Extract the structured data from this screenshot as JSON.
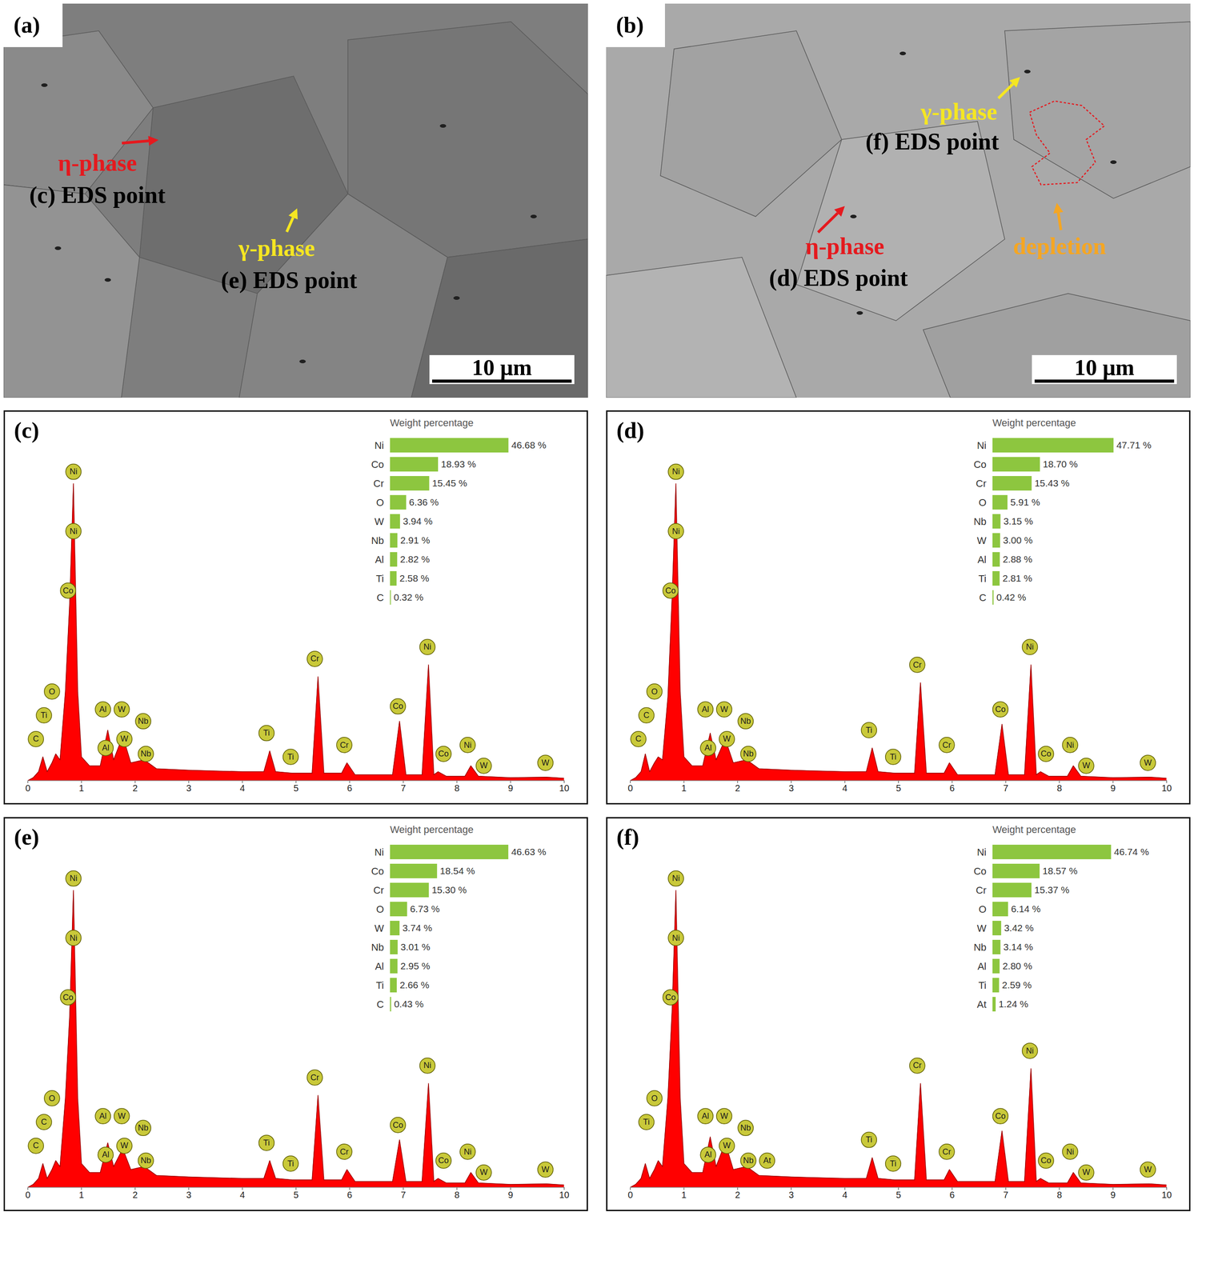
{
  "chart_data": [
    {
      "type": "image",
      "panel": "(a)",
      "scale_bar": "10 μm",
      "annotations": [
        {
          "text": "η-phase",
          "color": "#e5191e"
        },
        {
          "text": "(c) EDS point",
          "color": "#000000"
        },
        {
          "text": "γ-phase",
          "color": "#f5e622"
        },
        {
          "text": "(e) EDS point",
          "color": "#000000"
        }
      ]
    },
    {
      "type": "image",
      "panel": "(b)",
      "scale_bar": "10 μm",
      "annotations": [
        {
          "text": "γ-phase",
          "color": "#f5e622"
        },
        {
          "text": "(f) EDS point",
          "color": "#000000"
        },
        {
          "text": "η-phase",
          "color": "#e5191e"
        },
        {
          "text": "(d) EDS point",
          "color": "#000000"
        },
        {
          "text": "depletion",
          "color": "#f5a623"
        }
      ]
    },
    {
      "type": "area",
      "panel": "(c)",
      "color": "#ff0000",
      "tick_labels": "x",
      "xlim": [
        0,
        10
      ],
      "xticks": [
        0,
        1,
        2,
        3,
        4,
        5,
        6,
        7,
        8,
        9,
        10
      ],
      "ylim": [
        0,
        115
      ],
      "x": [
        0,
        0.1,
        0.2,
        0.28,
        0.36,
        0.45,
        0.52,
        0.6,
        0.7,
        0.78,
        0.85,
        0.93,
        1.0,
        1.15,
        1.35,
        1.49,
        1.6,
        1.77,
        1.92,
        2.17,
        2.4,
        3,
        4,
        4.4,
        4.51,
        4.62,
        4.93,
        5.3,
        5.41,
        5.52,
        5.85,
        5.95,
        6.1,
        6.8,
        6.93,
        7.05,
        7.35,
        7.47,
        7.57,
        7.65,
        7.8,
        8.15,
        8.26,
        8.4,
        9,
        9.67,
        10
      ],
      "values": [
        0,
        1,
        3,
        8,
        3,
        6,
        9,
        7,
        30,
        60,
        100,
        30,
        8,
        5,
        5,
        17,
        7,
        15,
        6,
        7,
        4,
        3.5,
        3,
        3,
        10,
        3,
        2.5,
        2.5,
        35,
        2.5,
        2.5,
        6,
        2,
        2,
        20,
        2,
        2,
        39,
        2,
        3,
        1.5,
        1.5,
        5,
        1.5,
        1,
        1.2,
        0.8
      ],
      "peak_labels": [
        {
          "label": "Ni",
          "x": 0.85,
          "y": 104
        },
        {
          "label": "Ni",
          "x": 0.85,
          "y": 84
        },
        {
          "label": "Co",
          "x": 0.75,
          "y": 64
        },
        {
          "label": "O",
          "x": 0.45,
          "y": 30
        },
        {
          "label": "Ti",
          "x": 0.3,
          "y": 22
        },
        {
          "label": "C",
          "x": 0.15,
          "y": 14
        },
        {
          "label": "Al",
          "x": 1.4,
          "y": 24
        },
        {
          "label": "Al",
          "x": 1.45,
          "y": 11
        },
        {
          "label": "W",
          "x": 1.75,
          "y": 24
        },
        {
          "label": "W",
          "x": 1.8,
          "y": 14
        },
        {
          "label": "Nb",
          "x": 2.15,
          "y": 20
        },
        {
          "label": "Nb",
          "x": 2.2,
          "y": 9
        },
        {
          "label": "Ti",
          "x": 4.45,
          "y": 16
        },
        {
          "label": "Ti",
          "x": 4.9,
          "y": 8
        },
        {
          "label": "Cr",
          "x": 5.35,
          "y": 41
        },
        {
          "label": "Cr",
          "x": 5.9,
          "y": 12
        },
        {
          "label": "Co",
          "x": 6.9,
          "y": 25
        },
        {
          "label": "Ni",
          "x": 7.45,
          "y": 45
        },
        {
          "label": "Co",
          "x": 7.75,
          "y": 9
        },
        {
          "label": "Ni",
          "x": 8.2,
          "y": 12
        },
        {
          "label": "W",
          "x": 8.5,
          "y": 5
        },
        {
          "label": "W",
          "x": 9.65,
          "y": 6
        }
      ],
      "inset": {
        "type": "bar",
        "orientation": "horizontal",
        "title": "Weight percentage",
        "color": "#8dc63f",
        "data_labels": true,
        "tick_labels": "y",
        "xlim": [
          0,
          50
        ],
        "categories": [
          "Ni",
          "Co",
          "Cr",
          "O",
          "W",
          "Nb",
          "Al",
          "Ti",
          "C"
        ],
        "values": [
          46.68,
          18.93,
          15.45,
          6.36,
          3.94,
          2.91,
          2.82,
          2.58,
          0.32
        ],
        "value_labels": [
          "46.68 %",
          "18.93 %",
          "15.45 %",
          "6.36 %",
          "3.94 %",
          "2.91 %",
          "2.82 %",
          "2.58 %",
          "0.32 %"
        ]
      }
    },
    {
      "type": "area",
      "panel": "(d)",
      "color": "#ff0000",
      "tick_labels": "x",
      "xlim": [
        0,
        10
      ],
      "xticks": [
        0,
        1,
        2,
        3,
        4,
        5,
        6,
        7,
        8,
        9,
        10
      ],
      "ylim": [
        0,
        115
      ],
      "x": [
        0,
        0.1,
        0.2,
        0.28,
        0.36,
        0.45,
        0.52,
        0.6,
        0.7,
        0.78,
        0.85,
        0.93,
        1.0,
        1.15,
        1.35,
        1.49,
        1.6,
        1.77,
        1.92,
        2.17,
        2.4,
        3,
        4,
        4.4,
        4.51,
        4.62,
        4.93,
        5.3,
        5.41,
        5.52,
        5.85,
        5.95,
        6.1,
        6.8,
        6.93,
        7.05,
        7.35,
        7.47,
        7.57,
        7.65,
        7.8,
        8.15,
        8.26,
        8.4,
        9,
        9.67,
        10
      ],
      "values": [
        0,
        1,
        3,
        9,
        3,
        6,
        8,
        7,
        28,
        62,
        100,
        30,
        8,
        5,
        5,
        16,
        7,
        14,
        6,
        7,
        4,
        3.5,
        3,
        3,
        11,
        3,
        2.5,
        2.5,
        33,
        2.5,
        2.5,
        6,
        2,
        2,
        19,
        2,
        2,
        39,
        2,
        3,
        1.5,
        1.5,
        5,
        1.5,
        1,
        1.2,
        0.8
      ],
      "peak_labels": [
        {
          "label": "Ni",
          "x": 0.85,
          "y": 104
        },
        {
          "label": "Ni",
          "x": 0.85,
          "y": 84
        },
        {
          "label": "Co",
          "x": 0.75,
          "y": 64
        },
        {
          "label": "O",
          "x": 0.45,
          "y": 30
        },
        {
          "label": "C",
          "x": 0.3,
          "y": 22
        },
        {
          "label": "C",
          "x": 0.15,
          "y": 14
        },
        {
          "label": "Al",
          "x": 1.4,
          "y": 24
        },
        {
          "label": "Al",
          "x": 1.45,
          "y": 11
        },
        {
          "label": "W",
          "x": 1.75,
          "y": 24
        },
        {
          "label": "W",
          "x": 1.8,
          "y": 14
        },
        {
          "label": "Nb",
          "x": 2.15,
          "y": 20
        },
        {
          "label": "Nb",
          "x": 2.2,
          "y": 9
        },
        {
          "label": "Ti",
          "x": 4.45,
          "y": 17
        },
        {
          "label": "Ti",
          "x": 4.9,
          "y": 8
        },
        {
          "label": "Cr",
          "x": 5.35,
          "y": 39
        },
        {
          "label": "Cr",
          "x": 5.9,
          "y": 12
        },
        {
          "label": "Co",
          "x": 6.9,
          "y": 24
        },
        {
          "label": "Ni",
          "x": 7.45,
          "y": 45
        },
        {
          "label": "Co",
          "x": 7.75,
          "y": 9
        },
        {
          "label": "Ni",
          "x": 8.2,
          "y": 12
        },
        {
          "label": "W",
          "x": 8.5,
          "y": 5
        },
        {
          "label": "W",
          "x": 9.65,
          "y": 6
        }
      ],
      "inset": {
        "type": "bar",
        "orientation": "horizontal",
        "title": "Weight percentage",
        "color": "#8dc63f",
        "data_labels": true,
        "tick_labels": "y",
        "xlim": [
          0,
          50
        ],
        "categories": [
          "Ni",
          "Co",
          "Cr",
          "O",
          "Nb",
          "W",
          "Al",
          "Ti",
          "C"
        ],
        "values": [
          47.71,
          18.7,
          15.43,
          5.91,
          3.15,
          3.0,
          2.88,
          2.81,
          0.42
        ],
        "value_labels": [
          "47.71 %",
          "18.70 %",
          "15.43 %",
          "5.91 %",
          "3.15 %",
          "3.00 %",
          "2.88 %",
          "2.81 %",
          "0.42 %"
        ]
      }
    },
    {
      "type": "area",
      "panel": "(e)",
      "color": "#ff0000",
      "tick_labels": "x",
      "xlim": [
        0,
        10
      ],
      "xticks": [
        0,
        1,
        2,
        3,
        4,
        5,
        6,
        7,
        8,
        9,
        10
      ],
      "ylim": [
        0,
        115
      ],
      "x": [
        0,
        0.1,
        0.2,
        0.28,
        0.36,
        0.45,
        0.52,
        0.6,
        0.7,
        0.78,
        0.85,
        0.93,
        1.0,
        1.15,
        1.35,
        1.49,
        1.6,
        1.77,
        1.92,
        2.17,
        2.4,
        3,
        4,
        4.4,
        4.51,
        4.62,
        4.93,
        5.3,
        5.41,
        5.52,
        5.85,
        5.95,
        6.1,
        6.8,
        6.93,
        7.05,
        7.35,
        7.47,
        7.57,
        7.65,
        7.8,
        8.15,
        8.26,
        8.4,
        9,
        9.67,
        10
      ],
      "values": [
        0,
        1,
        3,
        8,
        3,
        6,
        9,
        7,
        30,
        58,
        100,
        30,
        8,
        5,
        5,
        15,
        7,
        13,
        6,
        7,
        4,
        3.5,
        3,
        3,
        9,
        3,
        2.5,
        2.5,
        31,
        2.5,
        2.5,
        6,
        2,
        2,
        16,
        2,
        2,
        35,
        2,
        3,
        1.5,
        1.5,
        5,
        1.5,
        1,
        1.2,
        0.8
      ],
      "peak_labels": [
        {
          "label": "Ni",
          "x": 0.85,
          "y": 104
        },
        {
          "label": "Ni",
          "x": 0.85,
          "y": 84
        },
        {
          "label": "Co",
          "x": 0.75,
          "y": 64
        },
        {
          "label": "O",
          "x": 0.45,
          "y": 30
        },
        {
          "label": "C",
          "x": 0.3,
          "y": 22
        },
        {
          "label": "C",
          "x": 0.15,
          "y": 14
        },
        {
          "label": "Al",
          "x": 1.4,
          "y": 24
        },
        {
          "label": "Al",
          "x": 1.45,
          "y": 11
        },
        {
          "label": "W",
          "x": 1.75,
          "y": 24
        },
        {
          "label": "W",
          "x": 1.8,
          "y": 14
        },
        {
          "label": "Nb",
          "x": 2.15,
          "y": 20
        },
        {
          "label": "Nb",
          "x": 2.2,
          "y": 9
        },
        {
          "label": "Ti",
          "x": 4.45,
          "y": 15
        },
        {
          "label": "Ti",
          "x": 4.9,
          "y": 8
        },
        {
          "label": "Cr",
          "x": 5.35,
          "y": 37
        },
        {
          "label": "Cr",
          "x": 5.9,
          "y": 12
        },
        {
          "label": "Co",
          "x": 6.9,
          "y": 21
        },
        {
          "label": "Ni",
          "x": 7.45,
          "y": 41
        },
        {
          "label": "Co",
          "x": 7.75,
          "y": 9
        },
        {
          "label": "Ni",
          "x": 8.2,
          "y": 12
        },
        {
          "label": "W",
          "x": 8.5,
          "y": 5
        },
        {
          "label": "W",
          "x": 9.65,
          "y": 6
        }
      ],
      "inset": {
        "type": "bar",
        "orientation": "horizontal",
        "title": "Weight percentage",
        "color": "#8dc63f",
        "data_labels": true,
        "tick_labels": "y",
        "xlim": [
          0,
          50
        ],
        "categories": [
          "Ni",
          "Co",
          "Cr",
          "O",
          "W",
          "Nb",
          "Al",
          "Ti",
          "C"
        ],
        "values": [
          46.63,
          18.54,
          15.3,
          6.73,
          3.74,
          3.01,
          2.95,
          2.66,
          0.43
        ],
        "value_labels": [
          "46.63 %",
          "18.54 %",
          "15.30 %",
          "6.73 %",
          "3.74 %",
          "3.01 %",
          "2.95 %",
          "2.66 %",
          "0.43 %"
        ]
      }
    },
    {
      "type": "area",
      "panel": "(f)",
      "color": "#ff0000",
      "tick_labels": "x",
      "xlim": [
        0,
        10
      ],
      "xticks": [
        0,
        1,
        2,
        3,
        4,
        5,
        6,
        7,
        8,
        9,
        10
      ],
      "ylim": [
        0,
        115
      ],
      "x": [
        0,
        0.1,
        0.2,
        0.28,
        0.36,
        0.45,
        0.52,
        0.6,
        0.7,
        0.78,
        0.85,
        0.93,
        1.0,
        1.15,
        1.35,
        1.49,
        1.6,
        1.77,
        1.92,
        2.17,
        2.4,
        3,
        4,
        4.4,
        4.51,
        4.62,
        4.93,
        5.3,
        5.41,
        5.52,
        5.85,
        5.95,
        6.1,
        6.8,
        6.93,
        7.05,
        7.35,
        7.47,
        7.57,
        7.65,
        7.8,
        8.15,
        8.26,
        8.4,
        9,
        9.67,
        10
      ],
      "values": [
        0,
        1,
        3,
        8,
        3,
        6,
        9,
        7,
        30,
        60,
        100,
        30,
        8,
        5,
        5,
        17,
        7,
        15,
        6,
        7,
        4,
        3.5,
        3,
        3,
        10,
        3,
        2.5,
        2.5,
        35,
        2.5,
        2.5,
        6,
        2,
        2,
        19,
        2,
        2,
        40,
        2,
        3,
        1.5,
        1.5,
        5,
        1.5,
        1,
        1.2,
        0.8
      ],
      "peak_labels": [
        {
          "label": "Ni",
          "x": 0.85,
          "y": 104
        },
        {
          "label": "Ni",
          "x": 0.85,
          "y": 84
        },
        {
          "label": "Co",
          "x": 0.75,
          "y": 64
        },
        {
          "label": "O",
          "x": 0.45,
          "y": 30
        },
        {
          "label": "Ti",
          "x": 0.3,
          "y": 22
        },
        {
          "label": "Al",
          "x": 1.4,
          "y": 24
        },
        {
          "label": "Al",
          "x": 1.45,
          "y": 11
        },
        {
          "label": "W",
          "x": 1.75,
          "y": 24
        },
        {
          "label": "W",
          "x": 1.8,
          "y": 14
        },
        {
          "label": "Nb",
          "x": 2.15,
          "y": 20
        },
        {
          "label": "Nb",
          "x": 2.2,
          "y": 9
        },
        {
          "label": "At",
          "x": 2.55,
          "y": 9
        },
        {
          "label": "Ti",
          "x": 4.45,
          "y": 16
        },
        {
          "label": "Ti",
          "x": 4.9,
          "y": 8
        },
        {
          "label": "Cr",
          "x": 5.35,
          "y": 41
        },
        {
          "label": "Cr",
          "x": 5.9,
          "y": 12
        },
        {
          "label": "Co",
          "x": 6.9,
          "y": 24
        },
        {
          "label": "Ni",
          "x": 7.45,
          "y": 46
        },
        {
          "label": "Co",
          "x": 7.75,
          "y": 9
        },
        {
          "label": "Ni",
          "x": 8.2,
          "y": 12
        },
        {
          "label": "W",
          "x": 8.5,
          "y": 5
        },
        {
          "label": "W",
          "x": 9.65,
          "y": 6
        }
      ],
      "inset": {
        "type": "bar",
        "orientation": "horizontal",
        "title": "Weight percentage",
        "color": "#8dc63f",
        "data_labels": true,
        "tick_labels": "y",
        "xlim": [
          0,
          50
        ],
        "categories": [
          "Ni",
          "Co",
          "Cr",
          "O",
          "W",
          "Nb",
          "Al",
          "Ti",
          "At"
        ],
        "values": [
          46.74,
          18.57,
          15.37,
          6.14,
          3.42,
          3.14,
          2.8,
          2.59,
          1.24
        ],
        "value_labels": [
          "46.74 %",
          "18.57 %",
          "15.37 %",
          "6.14 %",
          "3.42 %",
          "3.14 %",
          "2.80 %",
          "2.59 %",
          "1.24 %"
        ]
      }
    }
  ]
}
